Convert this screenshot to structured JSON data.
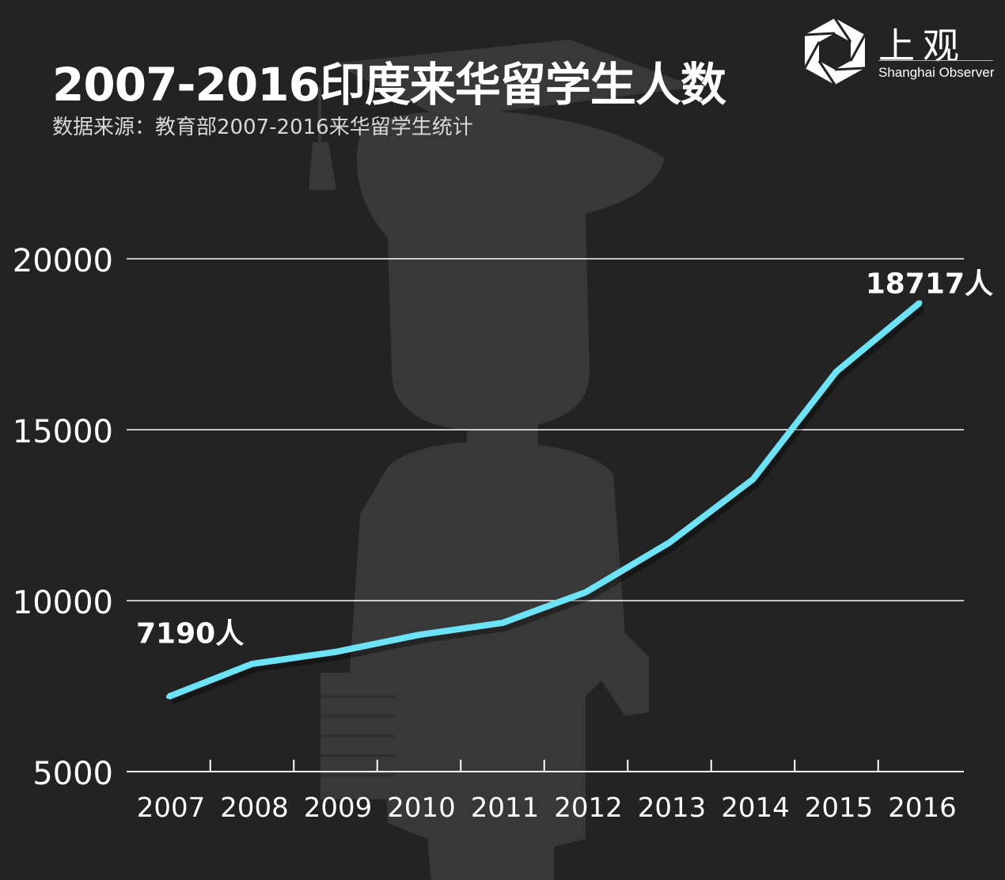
{
  "header": {
    "title": "2007-2016印度来华留学生人数",
    "subtitle": "数据来源：教育部2007-2016来华留学生统计"
  },
  "logo": {
    "chinese": "上观",
    "english": "Shanghai Observer",
    "icon": "aperture-icon"
  },
  "colors": {
    "background": "#232323",
    "line": "#6ce3f7",
    "grid": "#ffffff",
    "silhouette": "#3a3a3a"
  },
  "chart_data": {
    "type": "line",
    "title": "2007-2016印度来华留学生人数",
    "xlabel": "",
    "ylabel": "",
    "categories": [
      "2007",
      "2008",
      "2009",
      "2010",
      "2011",
      "2012",
      "2013",
      "2014",
      "2015",
      "2016"
    ],
    "series": [
      {
        "values": [
          7190,
          8150,
          8500,
          9000,
          9350,
          10250,
          11700,
          13550,
          16700,
          18717
        ]
      }
    ],
    "ylim": [
      5000,
      20000
    ],
    "yticks": [
      "5000",
      "10000",
      "15000",
      "20000"
    ],
    "grid": true,
    "annotations": [
      {
        "category": "2007",
        "text": "7190人"
      },
      {
        "category": "2016",
        "text": "18717人"
      }
    ]
  }
}
